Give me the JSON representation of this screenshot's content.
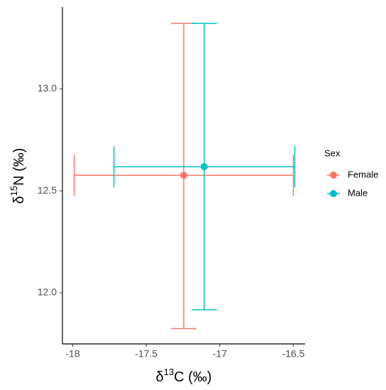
{
  "chart_data": {
    "type": "errorbar-scatter",
    "x_label": {
      "prefix": "δ",
      "sup": "13",
      "suffix": "C (‰)"
    },
    "y_label": {
      "prefix": "δ",
      "sup": "15",
      "suffix": "N (‰)"
    },
    "legend_title": "Sex",
    "legend": "right",
    "series": [
      {
        "name": "Female",
        "color": "#F8766D",
        "x": -17.245,
        "y": 12.576,
        "xmin": -17.99,
        "xmax": -16.5,
        "ymin": 11.825,
        "ymax": 13.32
      },
      {
        "name": "Male",
        "color": "#00BFC4",
        "x": -17.106,
        "y": 12.618,
        "xmin": -17.72,
        "xmax": -16.49,
        "ymin": 11.917,
        "ymax": 13.32
      }
    ],
    "xlim": [
      -18.07,
      -16.42
    ],
    "ylim": [
      11.75,
      13.4
    ],
    "xticks": [
      -18,
      -17.5,
      -17,
      -16.5
    ],
    "yticks": [
      {
        "value": 12.0,
        "label": "12.0"
      },
      12.5,
      {
        "value": 13.0,
        "label": "13.0"
      }
    ]
  }
}
